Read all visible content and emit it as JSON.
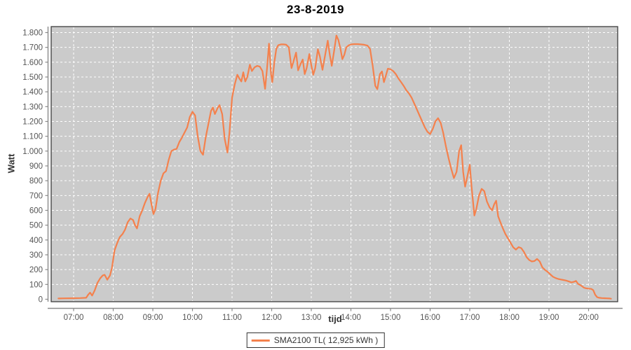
{
  "window": {
    "title": "23-8-2019"
  },
  "colors": {
    "plot_background": "#cbcbcb",
    "gridline": "#ffffff",
    "plot_border": "#3c3c3c",
    "axis_line": "#8a8a8a",
    "tick_label": "#555555",
    "series_line": "#f4814d",
    "title_text": "#000000"
  },
  "legend": {
    "label": "SMA2100 TL( 12,925 kWh )"
  },
  "chart_data": {
    "type": "line",
    "title": "23-8-2019",
    "xlabel": "tijd",
    "ylabel": "Watt",
    "x_ticks": [
      "07:00",
      "08:00",
      "09:00",
      "10:00",
      "11:00",
      "12:00",
      "13:00",
      "14:00",
      "15:00",
      "16:00",
      "17:00",
      "18:00",
      "19:00",
      "20:00"
    ],
    "y_ticks": [
      "0",
      "100",
      "200",
      "300",
      "400",
      "500",
      "600",
      "700",
      "800",
      "900",
      "1.000",
      "1.100",
      "1.200",
      "1.300",
      "1.400",
      "1.500",
      "1.600",
      "1.700",
      "1.800"
    ],
    "y_tick_step": 100,
    "ylim": [
      0,
      1840
    ],
    "xlim_hours": [
      6.43,
      20.73
    ],
    "grid": "white-dashed",
    "legend_position": "bottom-center",
    "series": [
      {
        "name": "SMA2100 TL( 12,925 kWh )",
        "color": "#f4814d",
        "points": [
          [
            "06:37",
            5
          ],
          [
            "06:45",
            6
          ],
          [
            "07:00",
            7
          ],
          [
            "07:10",
            8
          ],
          [
            "07:19",
            10
          ],
          [
            "07:22",
            30
          ],
          [
            "07:25",
            45
          ],
          [
            "07:28",
            25
          ],
          [
            "07:32",
            60
          ],
          [
            "07:36",
            110
          ],
          [
            "07:40",
            140
          ],
          [
            "07:44",
            160
          ],
          [
            "07:47",
            165
          ],
          [
            "07:51",
            132
          ],
          [
            "07:55",
            160
          ],
          [
            "07:58",
            210
          ],
          [
            "08:02",
            330
          ],
          [
            "08:06",
            380
          ],
          [
            "08:10",
            420
          ],
          [
            "08:14",
            440
          ],
          [
            "08:18",
            470
          ],
          [
            "08:22",
            520
          ],
          [
            "08:26",
            545
          ],
          [
            "08:30",
            535
          ],
          [
            "08:33",
            500
          ],
          [
            "08:36",
            478
          ],
          [
            "08:40",
            560
          ],
          [
            "08:44",
            600
          ],
          [
            "08:48",
            650
          ],
          [
            "08:52",
            690
          ],
          [
            "08:55",
            712
          ],
          [
            "08:58",
            640
          ],
          [
            "09:01",
            575
          ],
          [
            "09:04",
            610
          ],
          [
            "09:08",
            720
          ],
          [
            "09:12",
            800
          ],
          [
            "09:16",
            850
          ],
          [
            "09:20",
            865
          ],
          [
            "09:24",
            940
          ],
          [
            "09:28",
            1000
          ],
          [
            "09:32",
            1010
          ],
          [
            "09:36",
            1015
          ],
          [
            "09:40",
            1060
          ],
          [
            "09:44",
            1090
          ],
          [
            "09:48",
            1125
          ],
          [
            "09:52",
            1160
          ],
          [
            "09:56",
            1230
          ],
          [
            "10:00",
            1265
          ],
          [
            "10:04",
            1240
          ],
          [
            "10:08",
            1100
          ],
          [
            "10:12",
            1000
          ],
          [
            "10:16",
            975
          ],
          [
            "10:20",
            1090
          ],
          [
            "10:24",
            1180
          ],
          [
            "10:28",
            1270
          ],
          [
            "10:31",
            1295
          ],
          [
            "10:34",
            1250
          ],
          [
            "10:38",
            1290
          ],
          [
            "10:41",
            1310
          ],
          [
            "10:45",
            1250
          ],
          [
            "10:49",
            1080
          ],
          [
            "10:53",
            990
          ],
          [
            "10:56",
            1120
          ],
          [
            "11:00",
            1360
          ],
          [
            "11:04",
            1450
          ],
          [
            "11:08",
            1515
          ],
          [
            "11:11",
            1490
          ],
          [
            "11:14",
            1470
          ],
          [
            "11:17",
            1532
          ],
          [
            "11:20",
            1470
          ],
          [
            "11:23",
            1500
          ],
          [
            "11:27",
            1583
          ],
          [
            "11:30",
            1540
          ],
          [
            "11:34",
            1565
          ],
          [
            "11:38",
            1575
          ],
          [
            "11:42",
            1570
          ],
          [
            "11:46",
            1540
          ],
          [
            "11:50",
            1420
          ],
          [
            "11:53",
            1560
          ],
          [
            "11:56",
            1725
          ],
          [
            "11:59",
            1520
          ],
          [
            "12:01",
            1465
          ],
          [
            "12:04",
            1600
          ],
          [
            "12:07",
            1690
          ],
          [
            "12:10",
            1715
          ],
          [
            "12:14",
            1720
          ],
          [
            "12:18",
            1720
          ],
          [
            "12:22",
            1718
          ],
          [
            "12:26",
            1700
          ],
          [
            "12:30",
            1560
          ],
          [
            "12:34",
            1620
          ],
          [
            "12:37",
            1665
          ],
          [
            "12:40",
            1545
          ],
          [
            "12:44",
            1590
          ],
          [
            "12:47",
            1618
          ],
          [
            "12:50",
            1520
          ],
          [
            "12:53",
            1560
          ],
          [
            "12:57",
            1655
          ],
          [
            "13:00",
            1580
          ],
          [
            "13:03",
            1515
          ],
          [
            "13:06",
            1560
          ],
          [
            "13:10",
            1687
          ],
          [
            "13:13",
            1640
          ],
          [
            "13:17",
            1548
          ],
          [
            "13:21",
            1650
          ],
          [
            "13:25",
            1745
          ],
          [
            "13:28",
            1650
          ],
          [
            "13:31",
            1575
          ],
          [
            "13:35",
            1690
          ],
          [
            "13:38",
            1780
          ],
          [
            "13:41",
            1750
          ],
          [
            "13:44",
            1695
          ],
          [
            "13:47",
            1620
          ],
          [
            "13:50",
            1650
          ],
          [
            "13:53",
            1700
          ],
          [
            "13:57",
            1715
          ],
          [
            "14:01",
            1720
          ],
          [
            "14:05",
            1722
          ],
          [
            "14:10",
            1722
          ],
          [
            "14:15",
            1720
          ],
          [
            "14:20",
            1718
          ],
          [
            "14:25",
            1712
          ],
          [
            "14:29",
            1690
          ],
          [
            "14:33",
            1575
          ],
          [
            "14:37",
            1440
          ],
          [
            "14:40",
            1418
          ],
          [
            "14:44",
            1520
          ],
          [
            "14:47",
            1538
          ],
          [
            "14:50",
            1465
          ],
          [
            "14:53",
            1510
          ],
          [
            "14:56",
            1556
          ],
          [
            "15:00",
            1552
          ],
          [
            "15:04",
            1540
          ],
          [
            "15:08",
            1520
          ],
          [
            "15:12",
            1490
          ],
          [
            "15:16",
            1465
          ],
          [
            "15:20",
            1440
          ],
          [
            "15:24",
            1410
          ],
          [
            "15:28",
            1388
          ],
          [
            "15:32",
            1360
          ],
          [
            "15:36",
            1320
          ],
          [
            "15:40",
            1280
          ],
          [
            "15:44",
            1240
          ],
          [
            "15:48",
            1200
          ],
          [
            "15:52",
            1160
          ],
          [
            "15:56",
            1130
          ],
          [
            "16:00",
            1115
          ],
          [
            "16:04",
            1150
          ],
          [
            "16:08",
            1200
          ],
          [
            "16:12",
            1222
          ],
          [
            "16:16",
            1190
          ],
          [
            "16:20",
            1120
          ],
          [
            "16:24",
            1030
          ],
          [
            "16:28",
            950
          ],
          [
            "16:32",
            880
          ],
          [
            "16:36",
            818
          ],
          [
            "16:40",
            860
          ],
          [
            "16:44",
            1000
          ],
          [
            "16:47",
            1040
          ],
          [
            "16:50",
            860
          ],
          [
            "16:53",
            760
          ],
          [
            "16:56",
            820
          ],
          [
            "17:00",
            908
          ],
          [
            "17:03",
            750
          ],
          [
            "17:07",
            565
          ],
          [
            "17:10",
            610
          ],
          [
            "17:14",
            700
          ],
          [
            "17:18",
            745
          ],
          [
            "17:22",
            730
          ],
          [
            "17:26",
            660
          ],
          [
            "17:30",
            620
          ],
          [
            "17:34",
            600
          ],
          [
            "17:37",
            640
          ],
          [
            "17:40",
            665
          ],
          [
            "17:43",
            560
          ],
          [
            "17:46",
            525
          ],
          [
            "17:50",
            480
          ],
          [
            "17:54",
            440
          ],
          [
            "17:58",
            410
          ],
          [
            "18:02",
            380
          ],
          [
            "18:06",
            350
          ],
          [
            "18:10",
            335
          ],
          [
            "18:14",
            352
          ],
          [
            "18:18",
            345
          ],
          [
            "18:22",
            320
          ],
          [
            "18:26",
            285
          ],
          [
            "18:30",
            265
          ],
          [
            "18:34",
            255
          ],
          [
            "18:38",
            258
          ],
          [
            "18:42",
            272
          ],
          [
            "18:46",
            255
          ],
          [
            "18:50",
            215
          ],
          [
            "18:54",
            198
          ],
          [
            "18:58",
            185
          ],
          [
            "19:02",
            168
          ],
          [
            "19:06",
            152
          ],
          [
            "19:10",
            143
          ],
          [
            "19:14",
            137
          ],
          [
            "19:18",
            133
          ],
          [
            "19:22",
            130
          ],
          [
            "19:26",
            126
          ],
          [
            "19:30",
            120
          ],
          [
            "19:34",
            114
          ],
          [
            "19:38",
            118
          ],
          [
            "19:41",
            124
          ],
          [
            "19:44",
            104
          ],
          [
            "19:47",
            97
          ],
          [
            "19:50",
            88
          ],
          [
            "19:53",
            78
          ],
          [
            "19:56",
            74
          ],
          [
            "20:00",
            72
          ],
          [
            "20:04",
            70
          ],
          [
            "20:07",
            62
          ],
          [
            "20:10",
            30
          ],
          [
            "20:13",
            14
          ],
          [
            "20:16",
            10
          ],
          [
            "20:20",
            8
          ],
          [
            "20:24",
            7
          ],
          [
            "20:28",
            6
          ],
          [
            "20:32",
            5
          ],
          [
            "20:34",
            4
          ]
        ]
      }
    ]
  }
}
